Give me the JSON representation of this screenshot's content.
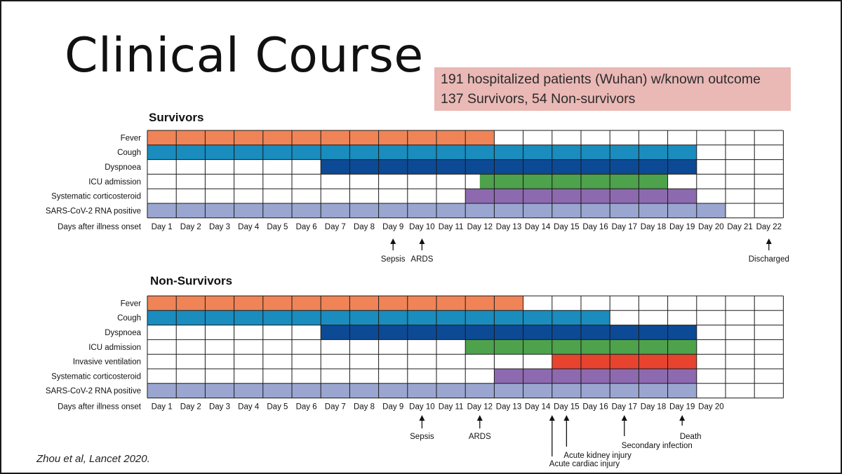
{
  "title": "Clinical Course",
  "summary": {
    "line1": "191 hospitalized patients (Wuhan) w/known outcome",
    "line2": "137 Survivors, 54 Non-survivors"
  },
  "citation": "Zhou et al, Lancet 2020.",
  "colors": {
    "fever": "#f08457",
    "cough": "#1a8cbd",
    "dyspnoea": "#0d4a95",
    "icu": "#4da24b",
    "ventilation": "#e8432e",
    "corticosteroid": "#8d6ab0",
    "rna": "#9aa6d0",
    "grid": "#1a1a1a"
  },
  "chart_data": [
    {
      "type": "table",
      "title": "Survivors",
      "axis_label": "Days after illness onset",
      "days": [
        "Day 1",
        "Day 2",
        "Day 3",
        "Day 4",
        "Day 5",
        "Day 6",
        "Day 7",
        "Day 8",
        "Day 9",
        "Day 10",
        "Day 11",
        "Day 12",
        "Day 13",
        "Day 14",
        "Day 15",
        "Day 16",
        "Day 17",
        "Day 18",
        "Day 19",
        "Day 20",
        "Day 21",
        "Day 22"
      ],
      "rows": [
        {
          "label": "Fever",
          "color_key": "fever",
          "start_day": 1,
          "end_day": 12
        },
        {
          "label": "Cough",
          "color_key": "cough",
          "start_day": 1,
          "end_day": 19
        },
        {
          "label": "Dyspnoea",
          "color_key": "dyspnoea",
          "start_day": 7,
          "end_day": 19
        },
        {
          "label": "ICU admission",
          "color_key": "icu",
          "start_day": 12.5,
          "end_day": 18
        },
        {
          "label": "Systematic corticosteroid",
          "color_key": "corticosteroid",
          "start_day": 12,
          "end_day": 19
        },
        {
          "label": "SARS-CoV-2 RNA positive",
          "color_key": "rna",
          "start_day": 1,
          "end_day": 20
        }
      ],
      "events": [
        {
          "label": "Sepsis",
          "day": 9
        },
        {
          "label": "ARDS",
          "day": 10
        },
        {
          "label": "Discharged",
          "day": 22
        }
      ]
    },
    {
      "type": "table",
      "title": "Non-Survivors",
      "axis_label": "Days after illness onset",
      "days": [
        "Day 1",
        "Day 2",
        "Day 3",
        "Day 4",
        "Day 5",
        "Day 6",
        "Day 7",
        "Day 8",
        "Day 9",
        "Day 10",
        "Day 11",
        "Day 12",
        "Day 13",
        "Day 14",
        "Day 15",
        "Day 16",
        "Day 17",
        "Day 18",
        "Day 19",
        "Day 20"
      ],
      "rows": [
        {
          "label": "Fever",
          "color_key": "fever",
          "start_day": 1,
          "end_day": 13
        },
        {
          "label": "Cough",
          "color_key": "cough",
          "start_day": 1,
          "end_day": 16
        },
        {
          "label": "Dyspnoea",
          "color_key": "dyspnoea",
          "start_day": 7,
          "end_day": 19
        },
        {
          "label": "ICU admission",
          "color_key": "icu",
          "start_day": 12,
          "end_day": 19
        },
        {
          "label": "Invasive ventilation",
          "color_key": "ventilation",
          "start_day": 15,
          "end_day": 19
        },
        {
          "label": "Systematic corticosteroid",
          "color_key": "corticosteroid",
          "start_day": 13,
          "end_day": 19
        },
        {
          "label": "SARS-CoV-2 RNA positive",
          "color_key": "rna",
          "start_day": 1,
          "end_day": 19
        }
      ],
      "events": [
        {
          "label": "Sepsis",
          "day": 10
        },
        {
          "label": "ARDS",
          "day": 12
        },
        {
          "label": "Acute cardiac injury",
          "day": 14.5
        },
        {
          "label": "Acute kidney injury",
          "day": 15
        },
        {
          "label": "Secondary infection",
          "day": 17
        },
        {
          "label": "Death",
          "day": 19
        }
      ]
    }
  ]
}
